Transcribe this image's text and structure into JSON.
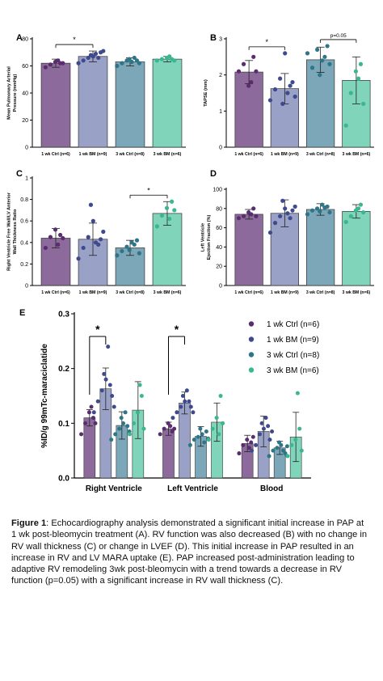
{
  "colors": {
    "ctrl1": "#8c6b9c",
    "bm1": "#9aa1c6",
    "ctrl3": "#7ba7b8",
    "bm3": "#7fd4b9",
    "dot_ctrl1": "#5a2d6e",
    "dot_bm1": "#3f4a8c",
    "dot_ctrl3": "#2e7587",
    "dot_bm3": "#3ab791"
  },
  "chart_data": [
    {
      "panel": "A",
      "type": "bar",
      "ylabel_lines": [
        "Mean Pulmonary Arterial",
        "Pressure (mmHg)"
      ],
      "categories": [
        "1 wk Ctrl (n=6)",
        "1 wk BM (n=9)",
        "3 wk Ctrl (n=8)",
        "3 wk BM (n=6)"
      ],
      "values": [
        62,
        67,
        63,
        65
      ],
      "errors": [
        3,
        4,
        3,
        2
      ],
      "ylim": [
        0,
        80
      ],
      "yticks": [
        0,
        20,
        40,
        60,
        80
      ],
      "points": [
        [
          59,
          61,
          63,
          62,
          64,
          62
        ],
        [
          62,
          64,
          66,
          67,
          68,
          69,
          70,
          66,
          71
        ],
        [
          60,
          62,
          64,
          63,
          65,
          66,
          62,
          64
        ],
        [
          64,
          65,
          66,
          65,
          67,
          64
        ]
      ],
      "annotations": [
        {
          "from": 0,
          "to": 1,
          "label": "*"
        }
      ]
    },
    {
      "panel": "B",
      "type": "bar",
      "ylabel_lines": [
        "TAPSE (mm)"
      ],
      "categories": [
        "1 wk Ctrl (n=6)",
        "1 wk BM (n=9)",
        "3 wk Ctrl (n=8)",
        "3 wk BM (n=6)"
      ],
      "values": [
        2.08,
        1.62,
        2.42,
        1.85
      ],
      "errors": [
        0.32,
        0.42,
        0.35,
        0.65
      ],
      "ylim": [
        0,
        3
      ],
      "yticks": [
        0,
        1,
        2,
        3
      ],
      "points": [
        [
          2.1,
          2.3,
          1.7,
          2.5,
          1.8,
          2.1
        ],
        [
          1.3,
          1.6,
          1.9,
          2.6,
          1.2,
          1.5,
          1.8,
          1.7,
          1.4
        ],
        [
          2.6,
          2.2,
          2.7,
          2.4,
          2.0,
          2.5,
          2.3,
          2.8
        ],
        [
          0.6,
          1.5,
          2.1,
          2.3,
          1.9,
          1.2
        ]
      ],
      "annotations": [
        {
          "from": 0,
          "to": 1,
          "label": "*"
        },
        {
          "from": 2,
          "to": 3,
          "label": "p=0.05"
        }
      ]
    },
    {
      "panel": "C",
      "type": "bar",
      "ylabel_lines": [
        "Right Ventricle Free Wall/LV Anterior",
        "Wall Thickness Ratio"
      ],
      "categories": [
        "1 wk Ctrl (n=6)",
        "1 wk BM (n=9)",
        "3 wk Ctrl (n=8)",
        "3 wk BM (n=6)"
      ],
      "values": [
        0.44,
        0.43,
        0.35,
        0.67
      ],
      "errors": [
        0.09,
        0.15,
        0.07,
        0.11
      ],
      "ylim": [
        0,
        1.0
      ],
      "yticks": [
        0,
        0.2,
        0.4,
        0.6,
        0.8,
        1.0
      ],
      "points": [
        [
          0.35,
          0.45,
          0.52,
          0.47,
          0.38,
          0.44
        ],
        [
          0.25,
          0.35,
          0.45,
          0.6,
          0.75,
          0.4,
          0.43,
          0.38,
          0.5
        ],
        [
          0.28,
          0.32,
          0.36,
          0.4,
          0.33,
          0.38,
          0.3,
          0.42
        ],
        [
          0.55,
          0.65,
          0.72,
          0.78,
          0.62,
          0.7
        ]
      ],
      "annotations": [
        {
          "from": 2,
          "to": 3,
          "label": "*"
        }
      ]
    },
    {
      "panel": "D",
      "type": "bar",
      "ylabel_lines": [
        "Left Ventricle",
        "Ejection Fraction (%)"
      ],
      "categories": [
        "1 wk Ctrl (n=6)",
        "1 wk BM (n=9)",
        "3 wk Ctrl (n=8)",
        "3 wk BM (n=6)"
      ],
      "values": [
        74,
        75,
        79,
        77
      ],
      "errors": [
        5,
        14,
        6,
        7
      ],
      "ylim": [
        0,
        100
      ],
      "yticks": [
        0,
        20,
        40,
        60,
        80,
        100
      ],
      "points": [
        [
          70,
          72,
          76,
          80,
          74,
          72
        ],
        [
          55,
          65,
          72,
          80,
          88,
          75,
          78,
          70,
          82
        ],
        [
          74,
          78,
          80,
          84,
          77,
          81,
          76,
          82
        ],
        [
          66,
          72,
          78,
          84,
          80,
          76
        ]
      ],
      "annotations": []
    },
    {
      "panel": "E",
      "type": "bar",
      "ylabel": "%ID/g 99mTc-maraciclatide",
      "categories": [
        "Right Ventricle",
        "Left Ventricle",
        "Blood"
      ],
      "ylim": [
        0,
        0.3
      ],
      "yticks": [
        0.0,
        0.1,
        0.2,
        0.3
      ],
      "series": [
        {
          "name": "1 wk Ctrl (n=6)",
          "values": [
            0.11,
            0.09,
            0.063
          ],
          "errors": [
            0.015,
            0.012,
            0.015
          ],
          "points": [
            [
              0.08,
              0.1,
              0.12,
              0.11,
              0.13,
              0.1
            ],
            [
              0.08,
              0.09,
              0.1,
              0.085,
              0.095,
              0.09
            ],
            [
              0.045,
              0.06,
              0.07,
              0.065,
              0.055,
              0.075
            ]
          ]
        },
        {
          "name": "1 wk BM (n=9)",
          "values": [
            0.163,
            0.137,
            0.085
          ],
          "errors": [
            0.038,
            0.02,
            0.028
          ],
          "points": [
            [
              0.12,
              0.14,
              0.16,
              0.18,
              0.19,
              0.24,
              0.15,
              0.17,
              0.13
            ],
            [
              0.11,
              0.12,
              0.13,
              0.14,
              0.15,
              0.16,
              0.13,
              0.14,
              0.12
            ],
            [
              0.05,
              0.06,
              0.08,
              0.09,
              0.1,
              0.11,
              0.07,
              0.095,
              0.085
            ]
          ]
        },
        {
          "name": "3 wk Ctrl (n=8)",
          "values": [
            0.096,
            0.076,
            0.055
          ],
          "errors": [
            0.025,
            0.018,
            0.012
          ],
          "points": [
            [
              0.07,
              0.08,
              0.09,
              0.1,
              0.11,
              0.12,
              0.085,
              0.095
            ],
            [
              0.06,
              0.07,
              0.075,
              0.08,
              0.09,
              0.065,
              0.072,
              0.085
            ],
            [
              0.04,
              0.05,
              0.055,
              0.06,
              0.065,
              0.05,
              0.058,
              0.045
            ]
          ]
        },
        {
          "name": "3 wk BM (n=6)",
          "values": [
            0.124,
            0.102,
            0.075
          ],
          "errors": [
            0.052,
            0.035,
            0.045
          ],
          "points": [
            [
              0.08,
              0.1,
              0.12,
              0.15,
              0.17,
              0.09
            ],
            [
              0.07,
              0.09,
              0.11,
              0.15,
              0.08,
              0.1
            ],
            [
              0.04,
              0.06,
              0.07,
              0.09,
              0.155,
              0.05
            ]
          ]
        }
      ],
      "annotations": [
        {
          "group": 0,
          "from": 0,
          "to": 1,
          "label": "*"
        },
        {
          "group": 1,
          "from": 0,
          "to": 1,
          "label": "*"
        }
      ]
    }
  ],
  "caption": {
    "label": "Figure 1",
    "text": ":  Echocardiography analysis demonstrated a significant initial increase in PAP at 1 wk post-bleomycin treatment (A).  RV function was also decreased (B) with no change in RV wall thickness (C) or change in LVEF (D). This initial increase in PAP resulted in an increase in RV and LV MARA uptake (E). PAP increased post-administration leading to adaptive RV remodeling 3wk post-bleomycin with a trend towards a decrease in RV function (p=0.05) with a significant increase in RV wall thickness (C)."
  }
}
